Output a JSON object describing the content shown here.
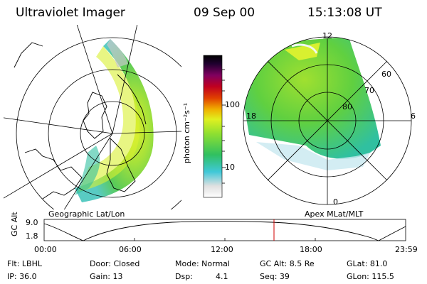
{
  "header": {
    "instrument": "Ultraviolet Imager",
    "date": "09 Sep 00",
    "time": "15:13:08 UT"
  },
  "colorbar": {
    "label": "photon cm⁻²s⁻¹",
    "ticks": [
      "100",
      "10"
    ],
    "colors": [
      "#e8e8e8",
      "#b0e0e8",
      "#40c8d8",
      "#30c070",
      "#60d040",
      "#a0e030",
      "#e0f020",
      "#f0c000",
      "#f08000",
      "#e04000",
      "#c00030",
      "#800060",
      "#300040",
      "#000000"
    ]
  },
  "left_panel": {
    "label": "Geographic Lat/Lon"
  },
  "right_panel": {
    "label": "Apex MLat/MLT",
    "mlt_labels": {
      "top": "12",
      "left": "18",
      "right": "6",
      "bottom": "0"
    },
    "lat_labels": [
      "60",
      "70",
      "80"
    ]
  },
  "altitude_plot": {
    "ylabel": "GC Alt",
    "yticks": [
      "9.0",
      "1.8"
    ],
    "xticks": [
      "00:00",
      "06:00",
      "12:00",
      "18:00",
      "23:59"
    ],
    "marker_color": "#d00000",
    "marker_time": "15:13"
  },
  "info": {
    "flt": "Flt: LBHL",
    "ip": "IP: 36.0",
    "door": "Door: Closed",
    "gain": "Gain: 13",
    "mode": "Mode: Normal",
    "dsp_label": "Dsp:",
    "dsp_value": "4.1",
    "gc_alt": "GC Alt: 8.5 Re",
    "seq": "Seq: 39",
    "glat": "GLat:  81.0",
    "glon": "GLon: 115.5"
  }
}
